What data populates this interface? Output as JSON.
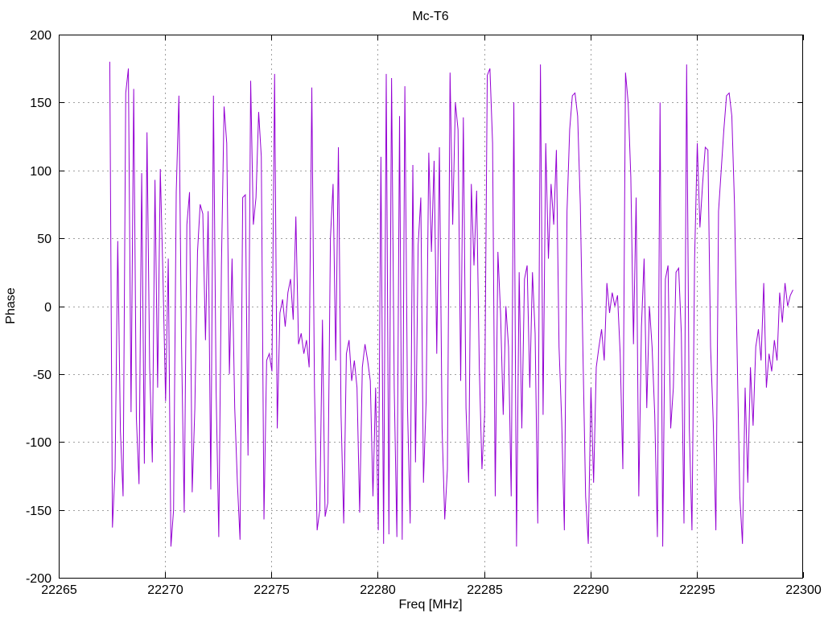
{
  "chart_data": {
    "type": "line",
    "title": "Mc-T6",
    "xlabel": "Freq [MHz]",
    "ylabel": "Phase",
    "xlim": [
      22265,
      22300
    ],
    "ylim": [
      -200,
      200
    ],
    "xticks": [
      22265,
      22270,
      22275,
      22280,
      22285,
      22290,
      22295,
      22300
    ],
    "yticks": [
      -200,
      -150,
      -100,
      -50,
      0,
      50,
      100,
      150,
      200
    ],
    "grid": true,
    "grid_style": "dotted",
    "legend": "none",
    "line_color": "#9400D3",
    "grid_color": "#a0a0a0",
    "border_color": "#000000",
    "series": [
      {
        "name": "Phase",
        "x_start": 22267.4,
        "x_step": 0.125,
        "y": [
          180,
          -163,
          -120,
          48,
          -92,
          -140,
          157,
          175,
          -78,
          160,
          -82,
          -131,
          98,
          -116,
          128,
          -45,
          -115,
          93,
          -60,
          101,
          22,
          -70,
          35,
          -177,
          -150,
          84,
          155,
          -30,
          -152,
          60,
          84,
          -137,
          -75,
          40,
          75,
          68,
          -25,
          70,
          -135,
          155,
          -62,
          -170,
          30,
          147,
          120,
          -50,
          35,
          -75,
          -130,
          -172,
          80,
          82,
          -110,
          166,
          60,
          80,
          143,
          110,
          -157,
          -40,
          -35,
          -48,
          171,
          -90,
          -5,
          5,
          -15,
          10,
          20,
          -10,
          66,
          -28,
          -20,
          -35,
          -25,
          -45,
          161,
          -60,
          -165,
          -150,
          -10,
          -155,
          -145,
          50,
          90,
          -40,
          117,
          -80,
          -160,
          -35,
          -25,
          -55,
          -40,
          -60,
          -152,
          -45,
          -28,
          -40,
          -55,
          -140,
          -60,
          -165,
          110,
          -175,
          171,
          -168,
          168,
          -60,
          -170,
          140,
          -172,
          162,
          -75,
          -160,
          104,
          -115,
          45,
          80,
          -130,
          -70,
          113,
          40,
          107,
          -35,
          117,
          -90,
          -157,
          -120,
          172,
          60,
          150,
          130,
          -55,
          139,
          -75,
          -130,
          90,
          30,
          85,
          -45,
          -120,
          -80,
          170,
          175,
          120,
          -140,
          40,
          -5,
          -80,
          0,
          -30,
          -140,
          150,
          -177,
          25,
          -90,
          20,
          30,
          -60,
          25,
          -20,
          -160,
          178,
          -80,
          120,
          35,
          90,
          60,
          115,
          -30,
          -85,
          -165,
          70,
          130,
          155,
          157,
          140,
          75,
          -35,
          -140,
          -175,
          -60,
          -130,
          -45,
          -30,
          -17,
          -40,
          17,
          -5,
          10,
          0,
          8,
          -35,
          -120,
          172,
          150,
          95,
          -28,
          80,
          -140,
          -15,
          35,
          -75,
          0,
          -30,
          -80,
          -170,
          150,
          -177,
          20,
          30,
          -90,
          -60,
          25,
          28,
          -20,
          -160,
          178,
          -90,
          -165,
          35,
          120,
          58,
          90,
          117,
          115,
          -30,
          -85,
          -165,
          70,
          100,
          130,
          155,
          157,
          140,
          75,
          -35,
          -140,
          -175,
          -60,
          -130,
          -45,
          -88,
          -30,
          -17,
          -40,
          17,
          -60,
          -35,
          -48,
          -25,
          -40,
          10,
          -12,
          17,
          0,
          8,
          12
        ]
      }
    ]
  }
}
